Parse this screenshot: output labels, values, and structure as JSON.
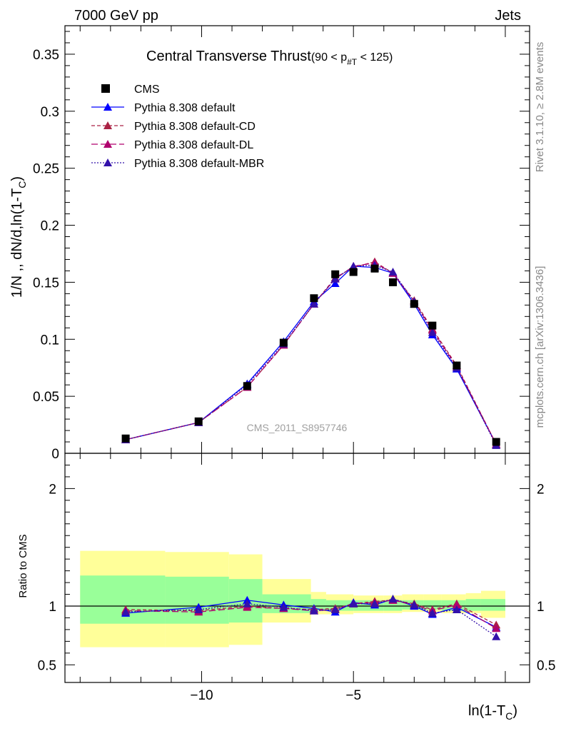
{
  "header": {
    "left": "7000 GeV pp",
    "right": "Jets"
  },
  "side_labels": {
    "rivet": "Rivet 3.1.10, ≥ 2.8M events",
    "mcplots": "mcplots.cern.ch [arXiv:1306.3436]"
  },
  "watermark": "CMS_2011_S8957746",
  "chart_data": [
    {
      "type": "line",
      "title": "Central Transverse Thrust",
      "title_range": "(90 < p",
      "title_sub": "#T",
      "title_range_end": " < 125)",
      "ylabel": "1/N ,, dN/d,ln(1-T",
      "ylabel_sub": "C",
      "ylabel_end": ")",
      "xlabel": "ln(1-T",
      "xlabel_sub": "C",
      "xlabel_end": ")",
      "xlim": [
        -14.5,
        0.8
      ],
      "ylim": [
        0,
        0.375
      ],
      "yticks": [
        "0",
        "0.05",
        "0.1",
        "0.15",
        "0.2",
        "0.25",
        "0.3",
        "0.35"
      ],
      "xticks": [
        "−10",
        "−5"
      ],
      "grid": false,
      "legend_position": "top-left",
      "x": [
        -12.5,
        -10.1,
        -8.5,
        -7.3,
        -6.3,
        -5.6,
        -5.0,
        -4.3,
        -3.7,
        -3.0,
        -2.4,
        -1.6,
        -0.3
      ],
      "series": [
        {
          "name": "CMS",
          "color": "#000000",
          "marker": "square",
          "values": [
            0.013,
            0.028,
            0.059,
            0.097,
            0.136,
            0.157,
            0.159,
            0.162,
            0.15,
            0.131,
            0.112,
            0.077,
            0.01
          ]
        },
        {
          "name": "Pythia 8.308 default",
          "color": "#0000ff",
          "marker": "triangle",
          "dash": "",
          "values": [
            0.012,
            0.027,
            0.061,
            0.098,
            0.133,
            0.149,
            0.164,
            0.163,
            0.158,
            0.131,
            0.104,
            0.074,
            0.008
          ]
        },
        {
          "name": "Pythia 8.308 default-CD",
          "color": "#aa2244",
          "marker": "triangle",
          "dash": "5,3",
          "values": [
            0.012,
            0.027,
            0.058,
            0.095,
            0.131,
            0.154,
            0.163,
            0.168,
            0.158,
            0.134,
            0.109,
            0.077,
            0.008
          ]
        },
        {
          "name": "Pythia 8.308 default-DL",
          "color": "#b0006e",
          "marker": "triangle",
          "dash": "9,4",
          "values": [
            0.012,
            0.027,
            0.058,
            0.095,
            0.131,
            0.153,
            0.164,
            0.167,
            0.158,
            0.133,
            0.108,
            0.076,
            0.008
          ]
        },
        {
          "name": "Pythia 8.308 default-MBR",
          "color": "#3311aa",
          "marker": "triangle",
          "dash": "2,2",
          "values": [
            0.012,
            0.027,
            0.06,
            0.096,
            0.131,
            0.153,
            0.164,
            0.165,
            0.159,
            0.133,
            0.106,
            0.075,
            0.007
          ]
        }
      ]
    },
    {
      "type": "line",
      "ylabel": "Ratio to CMS",
      "ylim": [
        0.35,
        2.3
      ],
      "yticks": [
        "0.5",
        "1",
        "2"
      ],
      "bands": {
        "x_edges": [
          -14.0,
          -11.2,
          -9.1,
          -8.0,
          -6.4,
          -5.9,
          -5.0,
          -4.0,
          -3.4,
          -2.7,
          -2.1,
          -1.3,
          -0.8,
          0.0
        ],
        "yellow_lo": [
          0.65,
          0.65,
          0.67,
          0.86,
          0.93,
          0.93,
          0.94,
          0.94,
          0.95,
          0.95,
          0.94,
          0.94,
          0.9,
          0.86
        ],
        "yellow_hi": [
          1.47,
          1.46,
          1.44,
          1.23,
          1.12,
          1.1,
          1.09,
          1.09,
          1.1,
          1.1,
          1.1,
          1.11,
          1.13,
          1.22
        ],
        "green_lo": [
          0.85,
          0.85,
          0.86,
          0.94,
          0.96,
          0.96,
          0.96,
          0.96,
          0.97,
          0.97,
          0.96,
          0.96,
          0.96,
          0.93
        ],
        "green_hi": [
          1.26,
          1.25,
          1.23,
          1.1,
          1.06,
          1.05,
          1.05,
          1.05,
          1.05,
          1.05,
          1.05,
          1.06,
          1.06,
          1.12
        ]
      },
      "series": [
        {
          "name": "Pythia 8.308 default",
          "values": [
            0.94,
            0.99,
            1.05,
            1.01,
            0.98,
            0.95,
            1.03,
            1.01,
            1.06,
            1.0,
            0.93,
            0.99,
            0.82
          ]
        },
        {
          "name": "Pythia 8.308 default-CD",
          "values": [
            0.97,
            0.96,
            1.0,
            0.98,
            0.97,
            0.98,
            1.02,
            1.04,
            1.05,
            1.02,
            0.97,
            1.02,
            0.84
          ]
        },
        {
          "name": "Pythia 8.308 default-DL",
          "values": [
            0.96,
            0.95,
            0.99,
            0.98,
            0.96,
            0.97,
            1.02,
            1.03,
            1.05,
            1.01,
            0.96,
            1.01,
            0.81
          ]
        },
        {
          "name": "Pythia 8.308 default-MBR",
          "values": [
            0.95,
            0.97,
            1.02,
            0.99,
            0.96,
            0.97,
            1.02,
            1.02,
            1.06,
            1.01,
            0.94,
            0.97,
            0.74
          ]
        }
      ]
    }
  ]
}
